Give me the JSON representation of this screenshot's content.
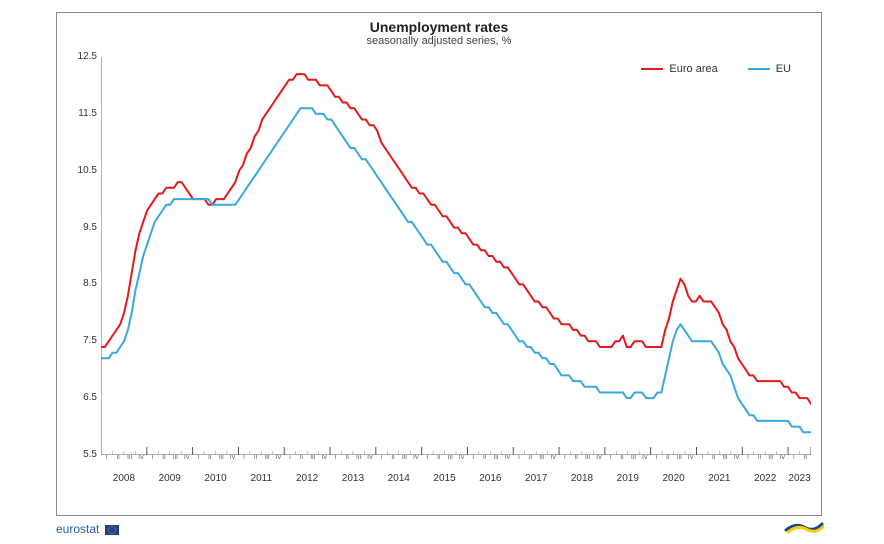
{
  "chart": {
    "type": "line",
    "title": "Unemployment rates",
    "subtitle": "seasonally adjusted series, %",
    "title_fontsize": 14,
    "subtitle_fontsize": 11,
    "background_color": "#ffffff",
    "border_color": "#888888",
    "line_width": 2,
    "yaxis": {
      "min": 5.5,
      "max": 12.5,
      "tick_step": 1.0,
      "ticks": [
        5.5,
        6.5,
        7.5,
        8.5,
        9.5,
        10.5,
        11.5,
        12.5
      ],
      "label_fontsize": 10,
      "label_color": "#333333",
      "zero_line_color": "#666666"
    },
    "xaxis": {
      "years": [
        2008,
        2009,
        2010,
        2011,
        2012,
        2013,
        2014,
        2015,
        2016,
        2017,
        2018,
        2019,
        2020,
        2021,
        2022,
        2023
      ],
      "quarters_per_year": {
        "default": 4,
        "2023": 2
      },
      "quarter_labels": [
        "I",
        "II",
        "III",
        "IV"
      ],
      "year_fontsize": 10,
      "quarter_fontsize": 6,
      "tick_color": "#666666"
    },
    "legend": {
      "position": "top-right",
      "fontsize": 11,
      "items": [
        {
          "label": "Euro area",
          "color": "#e31a1c"
        },
        {
          "label": "EU",
          "color": "#39a9dc"
        }
      ]
    },
    "series": [
      {
        "name": "Euro area",
        "color": "#e31a1c",
        "values": [
          7.4,
          7.4,
          7.5,
          7.6,
          7.7,
          7.8,
          8.0,
          8.3,
          8.7,
          9.1,
          9.4,
          9.6,
          9.8,
          9.9,
          10.0,
          10.1,
          10.1,
          10.2,
          10.2,
          10.2,
          10.3,
          10.3,
          10.2,
          10.1,
          10.0,
          10.0,
          10.0,
          10.0,
          9.9,
          9.9,
          10.0,
          10.0,
          10.0,
          10.1,
          10.2,
          10.3,
          10.5,
          10.6,
          10.8,
          10.9,
          11.1,
          11.2,
          11.4,
          11.5,
          11.6,
          11.7,
          11.8,
          11.9,
          12.0,
          12.1,
          12.1,
          12.2,
          12.2,
          12.2,
          12.1,
          12.1,
          12.1,
          12.0,
          12.0,
          12.0,
          11.9,
          11.8,
          11.8,
          11.7,
          11.7,
          11.6,
          11.6,
          11.5,
          11.4,
          11.4,
          11.3,
          11.3,
          11.2,
          11.0,
          10.9,
          10.8,
          10.7,
          10.6,
          10.5,
          10.4,
          10.3,
          10.2,
          10.2,
          10.1,
          10.1,
          10.0,
          9.9,
          9.9,
          9.8,
          9.7,
          9.7,
          9.6,
          9.5,
          9.5,
          9.4,
          9.4,
          9.3,
          9.2,
          9.2,
          9.1,
          9.1,
          9.0,
          9.0,
          8.9,
          8.9,
          8.8,
          8.8,
          8.7,
          8.6,
          8.5,
          8.5,
          8.4,
          8.3,
          8.2,
          8.2,
          8.1,
          8.1,
          8.0,
          7.9,
          7.9,
          7.8,
          7.8,
          7.8,
          7.7,
          7.7,
          7.6,
          7.6,
          7.5,
          7.5,
          7.5,
          7.4,
          7.4,
          7.4,
          7.4,
          7.5,
          7.5,
          7.6,
          7.4,
          7.4,
          7.5,
          7.5,
          7.5,
          7.4,
          7.4,
          7.4,
          7.4,
          7.4,
          7.7,
          7.9,
          8.2,
          8.4,
          8.6,
          8.5,
          8.3,
          8.2,
          8.2,
          8.3,
          8.2,
          8.2,
          8.2,
          8.1,
          8.0,
          7.8,
          7.7,
          7.5,
          7.4,
          7.2,
          7.1,
          7.0,
          6.9,
          6.9,
          6.8,
          6.8,
          6.8,
          6.8,
          6.8,
          6.8,
          6.8,
          6.7,
          6.7,
          6.6,
          6.6,
          6.5,
          6.5,
          6.5,
          6.4
        ]
      },
      {
        "name": "EU",
        "color": "#39a9dc",
        "values": [
          7.2,
          7.2,
          7.2,
          7.3,
          7.3,
          7.4,
          7.5,
          7.7,
          8.0,
          8.4,
          8.7,
          9.0,
          9.2,
          9.4,
          9.6,
          9.7,
          9.8,
          9.9,
          9.9,
          10.0,
          10.0,
          10.0,
          10.0,
          10.0,
          10.0,
          10.0,
          10.0,
          10.0,
          10.0,
          9.9,
          9.9,
          9.9,
          9.9,
          9.9,
          9.9,
          9.9,
          10.0,
          10.1,
          10.2,
          10.3,
          10.4,
          10.5,
          10.6,
          10.7,
          10.8,
          10.9,
          11.0,
          11.1,
          11.2,
          11.3,
          11.4,
          11.5,
          11.6,
          11.6,
          11.6,
          11.6,
          11.5,
          11.5,
          11.5,
          11.4,
          11.4,
          11.3,
          11.2,
          11.1,
          11.0,
          10.9,
          10.9,
          10.8,
          10.7,
          10.7,
          10.6,
          10.5,
          10.4,
          10.3,
          10.2,
          10.1,
          10.0,
          9.9,
          9.8,
          9.7,
          9.6,
          9.6,
          9.5,
          9.4,
          9.3,
          9.2,
          9.2,
          9.1,
          9.0,
          8.9,
          8.9,
          8.8,
          8.7,
          8.7,
          8.6,
          8.5,
          8.5,
          8.4,
          8.3,
          8.2,
          8.1,
          8.1,
          8.0,
          8.0,
          7.9,
          7.8,
          7.8,
          7.7,
          7.6,
          7.5,
          7.5,
          7.4,
          7.4,
          7.3,
          7.3,
          7.2,
          7.2,
          7.1,
          7.1,
          7.0,
          6.9,
          6.9,
          6.9,
          6.8,
          6.8,
          6.8,
          6.7,
          6.7,
          6.7,
          6.7,
          6.6,
          6.6,
          6.6,
          6.6,
          6.6,
          6.6,
          6.6,
          6.5,
          6.5,
          6.6,
          6.6,
          6.6,
          6.5,
          6.5,
          6.5,
          6.6,
          6.6,
          6.9,
          7.2,
          7.5,
          7.7,
          7.8,
          7.7,
          7.6,
          7.5,
          7.5,
          7.5,
          7.5,
          7.5,
          7.5,
          7.4,
          7.3,
          7.1,
          7.0,
          6.9,
          6.7,
          6.5,
          6.4,
          6.3,
          6.2,
          6.2,
          6.1,
          6.1,
          6.1,
          6.1,
          6.1,
          6.1,
          6.1,
          6.1,
          6.1,
          6.0,
          6.0,
          6.0,
          5.9,
          5.9,
          5.9
        ]
      }
    ],
    "source": {
      "label": "eurostat",
      "color": "#2a5caa"
    }
  }
}
